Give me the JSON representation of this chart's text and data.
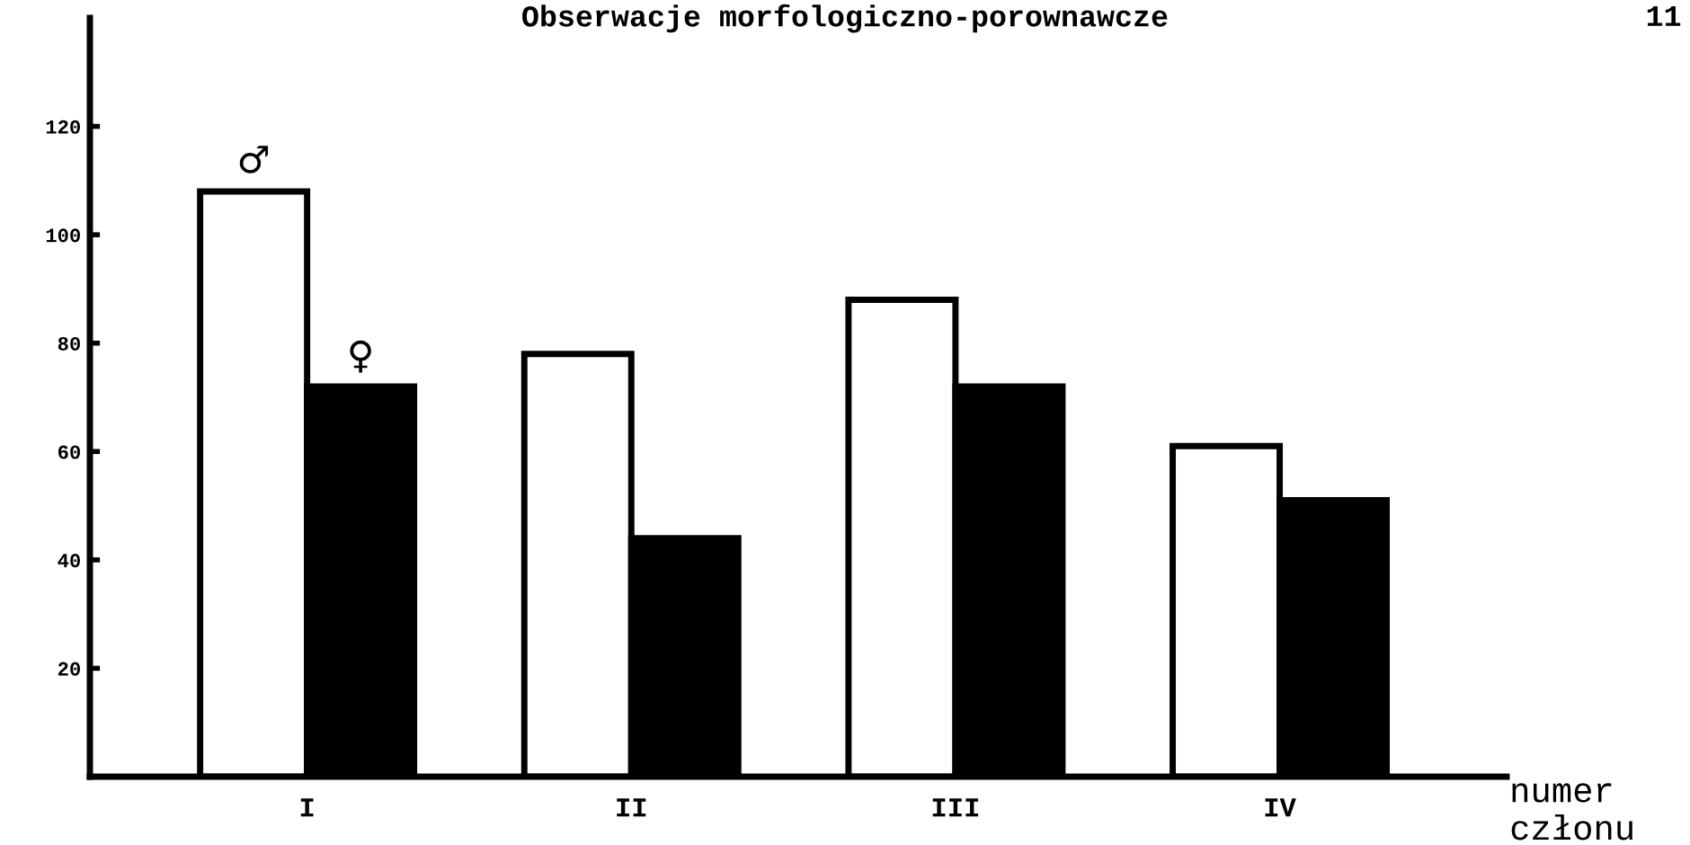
{
  "chart_data": {
    "type": "bar",
    "title": "Obserwacje morfologiczno-porownawcze",
    "xlabel": "numer\nczłonu",
    "annotations": [
      "11"
    ],
    "categories": [
      "I",
      "II",
      "III",
      "IV"
    ],
    "series": [
      {
        "name": "♂",
        "color": "#ffffff",
        "values": [
          108,
          78,
          88,
          61
        ]
      },
      {
        "name": "♀",
        "color": "#000000",
        "values": [
          72,
          44,
          72,
          51
        ]
      }
    ],
    "ylim": [
      0,
      140
    ],
    "yticks": [
      20,
      40,
      60,
      80,
      100,
      120
    ],
    "grid": false,
    "legend": false
  }
}
